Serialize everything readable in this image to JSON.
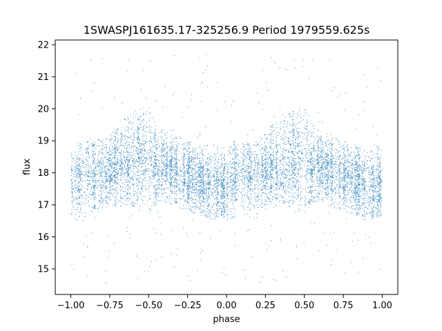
{
  "chart_data": {
    "type": "scatter",
    "title": "1SWASPJ161635.17-325256.9 Period 1979559.625s",
    "xlabel": "phase",
    "ylabel": "flux",
    "xlim": [
      -1.1,
      1.1
    ],
    "ylim": [
      14.2,
      22.15
    ],
    "x_ticks": [
      -1.0,
      -0.75,
      -0.5,
      -0.25,
      0.0,
      0.25,
      0.5,
      0.75,
      1.0
    ],
    "x_tick_labels": [
      "−1.00",
      "−0.75",
      "−0.50",
      "−0.25",
      "0.00",
      "0.25",
      "0.50",
      "0.75",
      "1.00"
    ],
    "y_ticks": [
      15,
      16,
      17,
      18,
      19,
      20,
      21,
      22
    ],
    "y_tick_labels": [
      "15",
      "16",
      "17",
      "18",
      "19",
      "20",
      "21",
      "22"
    ],
    "grid": false,
    "legend": "none",
    "marker_color": "#1f77b4",
    "phase_range": [
      -1.0,
      1.0
    ],
    "n_points": 9000,
    "spread_profile": {
      "x": [
        -1.0,
        -0.95,
        -0.9,
        -0.85,
        -0.8,
        -0.75,
        -0.7,
        -0.65,
        -0.6,
        -0.55,
        -0.5,
        -0.45,
        -0.4,
        -0.35,
        -0.3,
        -0.25,
        -0.2,
        -0.15,
        -0.1,
        -0.05,
        0.0,
        0.05,
        0.1,
        0.15,
        0.2,
        0.25,
        0.3,
        0.35,
        0.4,
        0.45,
        0.5,
        0.55,
        0.6,
        0.65,
        0.7,
        0.75,
        0.8,
        0.85,
        0.9,
        0.95,
        1.0
      ],
      "center": [
        17.6,
        17.8,
        18.0,
        17.9,
        17.9,
        18.0,
        18.2,
        18.2,
        18.3,
        18.4,
        18.4,
        18.2,
        18.2,
        18.1,
        18.0,
        17.9,
        17.8,
        17.7,
        17.6,
        17.5,
        17.6,
        17.8,
        18.0,
        17.9,
        17.9,
        18.0,
        18.2,
        18.2,
        18.3,
        18.4,
        18.4,
        18.2,
        18.2,
        18.1,
        18.0,
        17.9,
        17.8,
        17.7,
        17.6,
        17.5,
        17.6
      ],
      "min": [
        16.6,
        16.5,
        16.5,
        16.8,
        16.7,
        17.0,
        16.9,
        17.0,
        16.9,
        16.8,
        16.7,
        17.0,
        17.1,
        17.0,
        16.9,
        16.8,
        16.7,
        16.6,
        16.5,
        16.6,
        16.6,
        16.5,
        16.5,
        16.8,
        16.7,
        17.0,
        16.9,
        17.0,
        16.9,
        16.8,
        16.7,
        17.0,
        17.1,
        17.0,
        16.9,
        16.8,
        16.7,
        16.6,
        16.5,
        16.6,
        16.6
      ],
      "max": [
        18.7,
        19.0,
        19.0,
        19.0,
        19.1,
        19.2,
        19.6,
        19.8,
        19.9,
        20.0,
        20.1,
        19.6,
        19.3,
        19.2,
        19.1,
        19.0,
        18.9,
        18.9,
        18.9,
        18.9,
        18.7,
        19.0,
        19.0,
        19.0,
        19.1,
        19.2,
        19.6,
        19.8,
        19.9,
        20.0,
        20.1,
        19.6,
        19.3,
        19.2,
        19.1,
        19.0,
        18.9,
        18.9,
        18.9,
        18.9,
        18.7
      ]
    },
    "flux_extremes": [
      14.55,
      21.75
    ]
  }
}
